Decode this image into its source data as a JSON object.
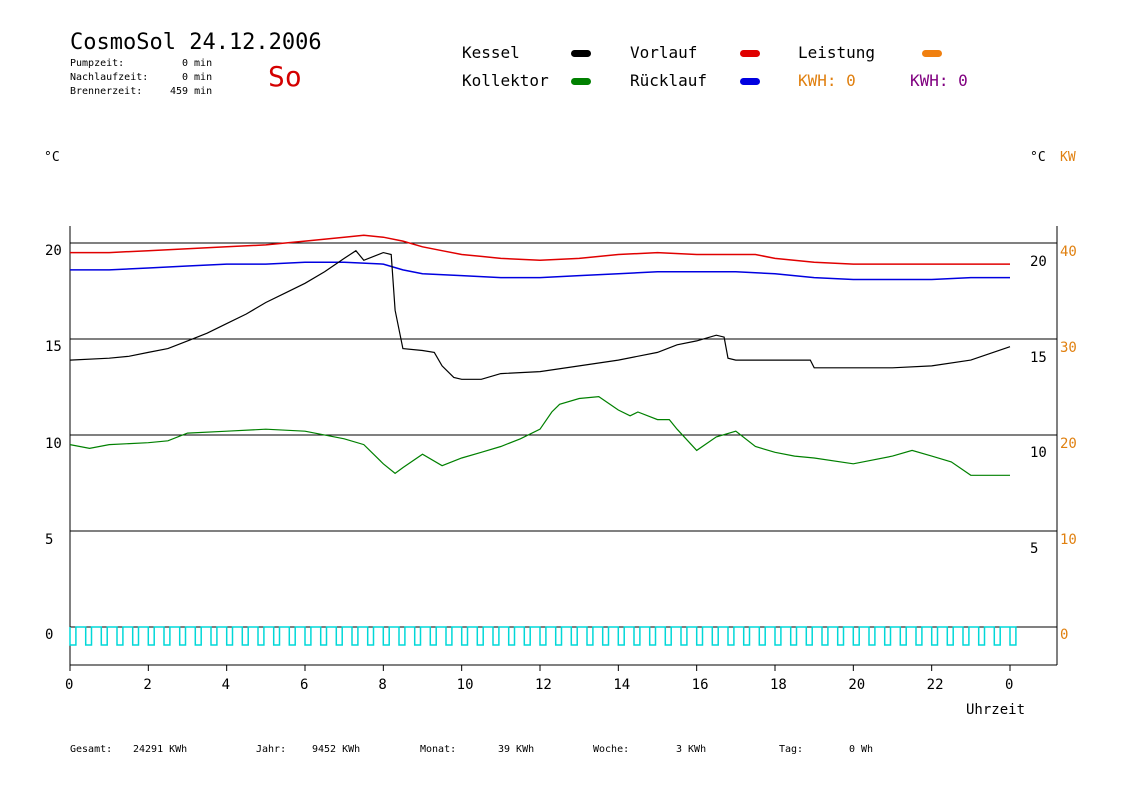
{
  "header": {
    "title": "CosmoSol 24.12.2006",
    "day": "So",
    "times": [
      {
        "label": "Pumpzeit:",
        "value": "0 min"
      },
      {
        "label": "Nachlaufzeit:",
        "value": "0 min"
      },
      {
        "label": "Brennerzeit:",
        "value": "459 min"
      }
    ]
  },
  "legend": {
    "kessel": {
      "label": "Kessel",
      "color": "#000000"
    },
    "vorlauf": {
      "label": "Vorlauf",
      "color": "#e00000"
    },
    "leistung": {
      "label": "Leistung",
      "color": "#f08010"
    },
    "kollektor": {
      "label": "Kollektor",
      "color": "#008000"
    },
    "ruecklauf": {
      "label": "Rücklauf",
      "color": "#0000e0"
    },
    "kwh1": {
      "label": "KWH: 0",
      "color": "#e08010"
    },
    "kwh2": {
      "label": "KWH: 0",
      "color": "#800080"
    }
  },
  "axes": {
    "left_unit": "°C",
    "right_unit": "°C",
    "right_unit2": "KW",
    "x_title": "Uhrzeit",
    "left_ticks": [
      "20",
      "15",
      "10",
      "5",
      "0"
    ],
    "inner_ticks": [
      "20",
      "15",
      "10",
      "5"
    ],
    "right_ticks": [
      "40",
      "30",
      "20",
      "10",
      "0"
    ],
    "x_ticks": [
      "0",
      "2",
      "4",
      "6",
      "8",
      "10",
      "12",
      "14",
      "16",
      "18",
      "20",
      "22",
      "0"
    ]
  },
  "footer": {
    "gesamt_label": "Gesamt:",
    "gesamt_value": "24291 KWh",
    "jahr_label": "Jahr:",
    "jahr_value": "9452 KWh",
    "monat_label": "Monat:",
    "monat_value": "39 KWh",
    "woche_label": "Woche:",
    "woche_value": "3 KWh",
    "tag_label": "Tag:",
    "tag_value": "0 Wh"
  },
  "chart_data": {
    "type": "line",
    "xlabel": "Uhrzeit",
    "ylabel": "°C",
    "xlim": [
      0,
      24
    ],
    "ylim": [
      0,
      20
    ],
    "y2lim": [
      0,
      40
    ],
    "grid": true,
    "series": [
      {
        "name": "Vorlauf",
        "color": "#e00000",
        "x": [
          0,
          1,
          2,
          3,
          4,
          5,
          6,
          7,
          7.5,
          8,
          8.5,
          9,
          9.5,
          10,
          10.5,
          11,
          12,
          13,
          14,
          15,
          16,
          17,
          17.5,
          18,
          19,
          20,
          21,
          22,
          23,
          24
        ],
        "y": [
          19.5,
          19.5,
          19.6,
          19.7,
          19.8,
          19.9,
          20.1,
          20.3,
          20.4,
          20.3,
          20.1,
          19.8,
          19.6,
          19.4,
          19.3,
          19.2,
          19.1,
          19.2,
          19.4,
          19.5,
          19.4,
          19.4,
          19.4,
          19.2,
          19.0,
          18.9,
          18.9,
          18.9,
          18.9,
          18.9
        ]
      },
      {
        "name": "Rücklauf",
        "color": "#0000e0",
        "x": [
          0,
          1,
          2,
          3,
          4,
          5,
          6,
          7,
          8,
          8.5,
          9,
          10,
          11,
          12,
          13,
          14,
          15,
          16,
          17,
          18,
          19,
          20,
          21,
          22,
          23,
          24
        ],
        "y": [
          18.6,
          18.6,
          18.7,
          18.8,
          18.9,
          18.9,
          19.0,
          19.0,
          18.9,
          18.6,
          18.4,
          18.3,
          18.2,
          18.2,
          18.3,
          18.4,
          18.5,
          18.5,
          18.5,
          18.4,
          18.2,
          18.1,
          18.1,
          18.1,
          18.2,
          18.2
        ]
      },
      {
        "name": "Kessel",
        "color": "#000000",
        "x": [
          0,
          1,
          1.5,
          2,
          2.5,
          3,
          3.5,
          4,
          4.5,
          5,
          5.5,
          6,
          6.5,
          7,
          7.3,
          7.5,
          8,
          8.2,
          8.3,
          8.5,
          9,
          9.3,
          9.5,
          9.8,
          10,
          10.5,
          11,
          12,
          13,
          14,
          15,
          15.5,
          16,
          16.5,
          16.7,
          16.8,
          17,
          18,
          18.9,
          19,
          20,
          21,
          22,
          23,
          24
        ],
        "y": [
          13.9,
          14.0,
          14.1,
          14.3,
          14.5,
          14.9,
          15.3,
          15.8,
          16.3,
          16.9,
          17.4,
          17.9,
          18.5,
          19.2,
          19.6,
          19.1,
          19.5,
          19.4,
          16.5,
          14.5,
          14.4,
          14.3,
          13.6,
          13.0,
          12.9,
          12.9,
          13.2,
          13.3,
          13.6,
          13.9,
          14.3,
          14.7,
          14.9,
          15.2,
          15.1,
          14.0,
          13.9,
          13.9,
          13.9,
          13.5,
          13.5,
          13.5,
          13.6,
          13.9,
          14.6
        ]
      },
      {
        "name": "Kollektor",
        "color": "#008000",
        "x": [
          0,
          0.5,
          1,
          2,
          2.5,
          3,
          4,
          5,
          6,
          7,
          7.5,
          8,
          8.3,
          8.5,
          9,
          9.5,
          10,
          10.5,
          11,
          11.5,
          12,
          12.3,
          12.5,
          13,
          13.5,
          14,
          14.3,
          14.5,
          15,
          15.3,
          15.5,
          16,
          16.5,
          17,
          17.5,
          18,
          18.5,
          19,
          20,
          21,
          21.5,
          22,
          22.5,
          23,
          23.5,
          24
        ],
        "y": [
          9.5,
          9.3,
          9.5,
          9.6,
          9.7,
          10.1,
          10.2,
          10.3,
          10.2,
          9.8,
          9.5,
          8.5,
          8.0,
          8.3,
          9.0,
          8.4,
          8.8,
          9.1,
          9.4,
          9.8,
          10.3,
          11.2,
          11.6,
          11.9,
          12.0,
          11.3,
          11.0,
          11.2,
          10.8,
          10.8,
          10.3,
          9.2,
          9.9,
          10.2,
          9.4,
          9.1,
          8.9,
          8.8,
          8.5,
          8.9,
          9.2,
          8.9,
          8.6,
          7.9,
          7.9,
          7.9
        ]
      }
    ]
  }
}
